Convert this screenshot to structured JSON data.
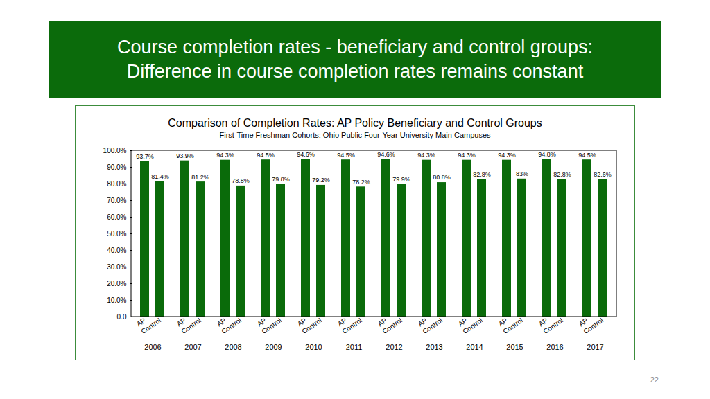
{
  "slide": {
    "title": [
      "Course completion rates - beneficiary and control groups:",
      "Difference in course completion rates remains constant"
    ],
    "page_number": "22"
  },
  "chart_data": {
    "type": "bar",
    "title": "Comparison of Completion Rates: AP Policy Beneficiary and Control Groups",
    "subtitle": "First-Time Freshman Cohorts: Ohio Public Four-Year University Main Campuses",
    "categories": [
      "2006",
      "2007",
      "2008",
      "2009",
      "2010",
      "2011",
      "2012",
      "2013",
      "2014",
      "2015",
      "2016",
      "2017"
    ],
    "series": [
      {
        "name": "AP",
        "color": "#0a6b0a",
        "values": [
          93.7,
          93.9,
          94.3,
          94.5,
          94.6,
          94.5,
          94.6,
          94.3,
          94.3,
          94.3,
          94.8,
          94.5
        ],
        "value_labels": [
          "93.7%",
          "93.9%",
          "94.3%",
          "94.5%",
          "94.6%",
          "94.5%",
          "94.6%",
          "94.3%",
          "94.3%",
          "94.3%",
          "94.8%",
          "94.5%"
        ]
      },
      {
        "name": "Control",
        "color": "#0a6b0a",
        "values": [
          81.4,
          81.2,
          78.8,
          79.8,
          79.2,
          78.2,
          79.9,
          80.8,
          82.8,
          83,
          82.8,
          82.6
        ],
        "value_labels": [
          "81.4%",
          "81.2%",
          "78.8%",
          "79.8%",
          "79.2%",
          "78.2%",
          "79.9%",
          "80.8%",
          "82.8%",
          "83%",
          "82.8%",
          "82.6%"
        ]
      }
    ],
    "ylim": [
      0,
      100
    ],
    "yticks": [
      {
        "value": 0,
        "label": "0.0"
      },
      {
        "value": 10,
        "label": "10.0%"
      },
      {
        "value": 20,
        "label": "20.0%"
      },
      {
        "value": 30,
        "label": "30.0%"
      },
      {
        "value": 40,
        "label": "40.0%"
      },
      {
        "value": 50,
        "label": "50.0%"
      },
      {
        "value": 60,
        "label": "60.0%"
      },
      {
        "value": 70,
        "label": "70.0%"
      },
      {
        "value": 80,
        "label": "80.0%"
      },
      {
        "value": 90,
        "label": "90.0%"
      },
      {
        "value": 100,
        "label": "100.0%"
      }
    ],
    "grid": false,
    "data_labels": true
  }
}
